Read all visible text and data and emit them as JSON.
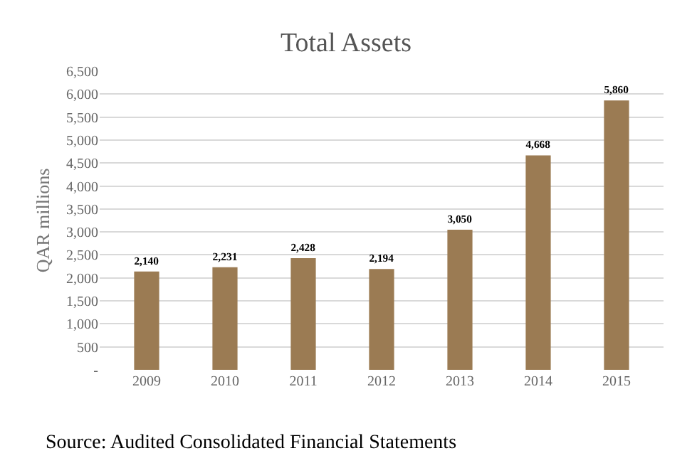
{
  "chart_data": {
    "type": "bar",
    "title": "Total Assets",
    "ylabel": "QAR millions",
    "categories": [
      "2009",
      "2010",
      "2011",
      "2012",
      "2013",
      "2014",
      "2015"
    ],
    "values": [
      2140,
      2231,
      2428,
      2194,
      3050,
      4668,
      5860
    ],
    "color": "#9b7b53",
    "value_labels": [
      "2,140",
      "2,231",
      "2,428",
      "2,194",
      "3,050",
      "4,668",
      "5,860"
    ],
    "ylim": [
      0,
      6500
    ],
    "yticks": [
      {
        "value": 0,
        "label": "-"
      },
      500,
      {
        "value": 1000,
        "label": "1,000"
      },
      {
        "value": 1500,
        "label": "1,500"
      },
      {
        "value": 2000,
        "label": "2,000"
      },
      {
        "value": 2500,
        "label": "2,500"
      },
      {
        "value": 3000,
        "label": "3,000"
      },
      {
        "value": 3500,
        "label": "3,500"
      },
      {
        "value": 4000,
        "label": "4,000"
      },
      {
        "value": 4500,
        "label": "4,500"
      },
      {
        "value": 5000,
        "label": "5,000"
      },
      {
        "value": 5500,
        "label": "5,500"
      },
      {
        "value": 6000,
        "label": "6,000"
      },
      {
        "value": 6500,
        "label": "6,500"
      }
    ],
    "grid": "y",
    "annotations": [
      "Source: Audited Consolidated Financial Statements"
    ]
  }
}
